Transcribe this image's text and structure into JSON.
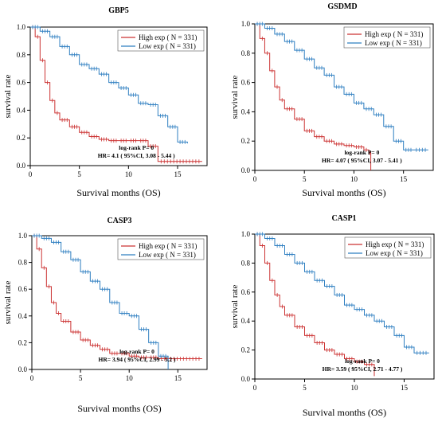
{
  "colors": {
    "high": "#cc3333",
    "low": "#2f7fc1",
    "axis": "#000000"
  },
  "chart_data": [
    {
      "type": "line",
      "title": "GBP5",
      "xlabel": "Survival months (OS)",
      "ylabel": "survival rate",
      "xlim": [
        0,
        18
      ],
      "ylim": [
        0,
        1.0
      ],
      "xticks": [
        "0",
        "5",
        "10",
        "15"
      ],
      "yticks": [
        "0.0",
        "0.2",
        "0.4",
        "0.6",
        "0.8",
        "1.0"
      ],
      "legend_position": "top-right",
      "legend": [
        "High exp ( N = 331)",
        "Low exp ( N = 331)"
      ],
      "annotation": [
        "log-rank P= 0",
        "HR= 4.1  ( 95%CI, 3.08 - 5.44 )"
      ],
      "series": [
        {
          "name": "High exp ( N = 331)",
          "color": "#cc3333",
          "x": [
            0,
            0.5,
            1,
            1.5,
            2,
            2.5,
            3,
            4,
            5,
            6,
            7,
            8,
            9,
            10,
            11,
            12,
            13,
            17.5
          ],
          "y": [
            1.0,
            0.93,
            0.76,
            0.6,
            0.47,
            0.38,
            0.33,
            0.28,
            0.24,
            0.21,
            0.19,
            0.18,
            0.18,
            0.18,
            0.18,
            0.14,
            0.03,
            0.03
          ]
        },
        {
          "name": "Low exp ( N = 331)",
          "color": "#2f7fc1",
          "x": [
            0,
            1,
            2,
            3,
            4,
            5,
            6,
            7,
            8,
            9,
            10,
            11,
            12,
            13,
            14,
            15,
            16
          ],
          "y": [
            1.0,
            0.97,
            0.93,
            0.86,
            0.8,
            0.73,
            0.7,
            0.66,
            0.6,
            0.56,
            0.51,
            0.45,
            0.44,
            0.36,
            0.28,
            0.17,
            0.16
          ]
        }
      ]
    },
    {
      "type": "line",
      "title": "GSDMD",
      "xlabel": "Survival months (OS)",
      "ylabel": "survival rate",
      "xlim": [
        0,
        18
      ],
      "ylim": [
        0,
        1.0
      ],
      "xticks": [
        "0",
        "5",
        "10",
        "15"
      ],
      "yticks": [
        "0.0",
        "0.2",
        "0.4",
        "0.6",
        "0.8",
        "1.0"
      ],
      "legend_position": "top-right",
      "legend": [
        "High exp ( N = 331)",
        "Low exp ( N = 331)"
      ],
      "annotation": [
        "log-rank P= 0",
        "HR= 4.07  ( 95%CI, 3.07 - 5.41 )"
      ],
      "series": [
        {
          "name": "High exp ( N = 331)",
          "color": "#cc3333",
          "x": [
            0,
            0.5,
            1,
            1.5,
            2,
            2.5,
            3,
            4,
            5,
            6,
            7,
            8,
            9,
            10,
            11,
            11.5,
            11.7
          ],
          "y": [
            1.0,
            0.9,
            0.8,
            0.68,
            0.57,
            0.48,
            0.42,
            0.35,
            0.27,
            0.23,
            0.2,
            0.18,
            0.17,
            0.16,
            0.14,
            0.12,
            0.0
          ]
        },
        {
          "name": "Low exp ( N = 331)",
          "color": "#2f7fc1",
          "x": [
            0,
            1,
            2,
            3,
            4,
            5,
            6,
            7,
            8,
            9,
            10,
            11,
            12,
            13,
            14,
            15,
            16,
            17.5
          ],
          "y": [
            1.0,
            0.97,
            0.93,
            0.88,
            0.82,
            0.76,
            0.7,
            0.65,
            0.57,
            0.52,
            0.46,
            0.42,
            0.38,
            0.3,
            0.2,
            0.14,
            0.14,
            0.14
          ]
        }
      ]
    },
    {
      "type": "line",
      "title": "CASP3",
      "xlabel": "Survival months (OS)",
      "ylabel": "survival rate",
      "xlim": [
        0,
        18
      ],
      "ylim": [
        0,
        1.0
      ],
      "xticks": [
        "0",
        "5",
        "10",
        "15"
      ],
      "yticks": [
        "0.0",
        "0.2",
        "0.4",
        "0.6",
        "0.8",
        "1.0"
      ],
      "legend_position": "top-right",
      "legend": [
        "High exp ( N = 331)",
        "Low exp ( N = 331)"
      ],
      "annotation": [
        "log-rank P= 0",
        "HR= 3.94  ( 95%CI, 2.99 - 5.2 )"
      ],
      "series": [
        {
          "name": "High exp ( N = 331)",
          "color": "#cc3333",
          "x": [
            0,
            0.5,
            1,
            1.5,
            2,
            2.5,
            3,
            4,
            5,
            6,
            7,
            8,
            9,
            10,
            11,
            12,
            13,
            17.5
          ],
          "y": [
            1.0,
            0.9,
            0.76,
            0.62,
            0.5,
            0.42,
            0.36,
            0.28,
            0.22,
            0.18,
            0.15,
            0.12,
            0.12,
            0.1,
            0.09,
            0.09,
            0.08,
            0.08
          ]
        },
        {
          "name": "Low exp ( N = 331)",
          "color": "#2f7fc1",
          "x": [
            0,
            1,
            2,
            3,
            4,
            5,
            6,
            7,
            8,
            9,
            10,
            11,
            12,
            13,
            14
          ],
          "y": [
            1.0,
            0.98,
            0.95,
            0.88,
            0.82,
            0.73,
            0.66,
            0.6,
            0.5,
            0.42,
            0.4,
            0.3,
            0.2,
            0.1,
            0.0
          ]
        }
      ]
    },
    {
      "type": "line",
      "title": "CASP1",
      "xlabel": "Survival months (OS)",
      "ylabel": "survival rate",
      "xlim": [
        0,
        18
      ],
      "ylim": [
        0,
        1.0
      ],
      "xticks": [
        "0",
        "5",
        "10",
        "15"
      ],
      "yticks": [
        "0.0",
        "0.2",
        "0.4",
        "0.6",
        "0.8",
        "1.0"
      ],
      "legend_position": "top-right",
      "legend": [
        "High exp ( N = 331)",
        "Low exp ( N = 331)"
      ],
      "annotation": [
        "log-rank P= 0",
        "HR= 3.59  ( 95%CI, 2.71 - 4.77 )"
      ],
      "series": [
        {
          "name": "High exp ( N = 331)",
          "color": "#cc3333",
          "x": [
            0,
            0.5,
            1,
            1.5,
            2,
            2.5,
            3,
            4,
            5,
            6,
            7,
            8,
            9,
            10,
            11,
            12
          ],
          "y": [
            1.0,
            0.92,
            0.8,
            0.68,
            0.58,
            0.5,
            0.44,
            0.36,
            0.3,
            0.25,
            0.2,
            0.17,
            0.14,
            0.12,
            0.1,
            0.02
          ]
        },
        {
          "name": "Low exp ( N = 331)",
          "color": "#2f7fc1",
          "x": [
            0,
            1,
            2,
            3,
            4,
            5,
            6,
            7,
            8,
            9,
            10,
            11,
            12,
            13,
            14,
            15,
            16,
            17.5
          ],
          "y": [
            1.0,
            0.97,
            0.92,
            0.86,
            0.8,
            0.74,
            0.68,
            0.64,
            0.58,
            0.51,
            0.48,
            0.44,
            0.4,
            0.36,
            0.3,
            0.22,
            0.18,
            0.18
          ]
        }
      ]
    }
  ]
}
